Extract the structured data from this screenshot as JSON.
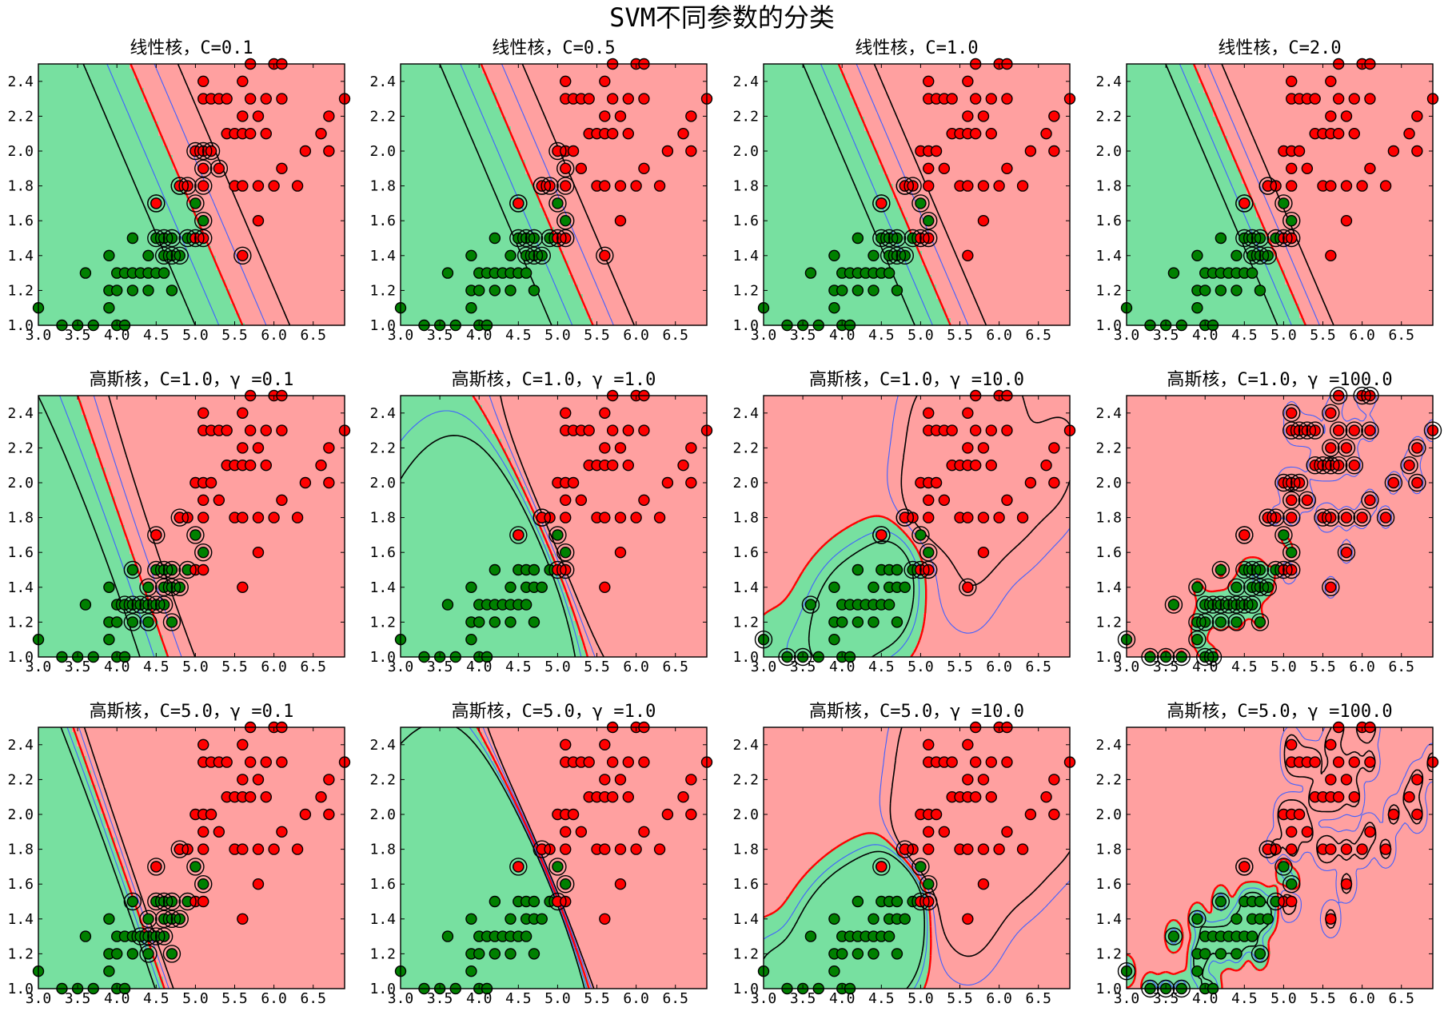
{
  "figure": {
    "title": "SVM不同参数的分类"
  },
  "colors": {
    "class0_region": "#77e0a0",
    "class1_region": "#ffa0a0",
    "class0_point": "#008000",
    "class1_point": "#ff0000",
    "boundary": "#ff0000",
    "margin_dashed": "#000000",
    "inner_dashed": "#4060ff"
  },
  "chart_data": [
    {
      "type": "scatter",
      "title": "线性核，C=0.1",
      "kernel": "linear",
      "C": 0.1,
      "xlim": [
        3.0,
        6.9
      ],
      "ylim": [
        1.0,
        2.5
      ],
      "xticks": [
        "3.0",
        "3.5",
        "4.0",
        "4.5",
        "5.0",
        "5.5",
        "6.0",
        "6.5"
      ],
      "yticks": [
        "1.0",
        "1.2",
        "1.4",
        "1.6",
        "1.8",
        "2.0",
        "2.2",
        "2.4"
      ]
    },
    {
      "type": "scatter",
      "title": "线性核，C=0.5",
      "kernel": "linear",
      "C": 0.5,
      "xlim": [
        3.0,
        6.9
      ],
      "ylim": [
        1.0,
        2.5
      ],
      "xticks": [
        "3.0",
        "3.5",
        "4.0",
        "4.5",
        "5.0",
        "5.5",
        "6.0",
        "6.5"
      ],
      "yticks": [
        "1.0",
        "1.2",
        "1.4",
        "1.6",
        "1.8",
        "2.0",
        "2.2",
        "2.4"
      ]
    },
    {
      "type": "scatter",
      "title": "线性核，C=1.0",
      "kernel": "linear",
      "C": 1.0,
      "xlim": [
        3.0,
        6.9
      ],
      "ylim": [
        1.0,
        2.5
      ],
      "xticks": [
        "3.0",
        "3.5",
        "4.0",
        "4.5",
        "5.0",
        "5.5",
        "6.0",
        "6.5"
      ],
      "yticks": [
        "1.0",
        "1.2",
        "1.4",
        "1.6",
        "1.8",
        "2.0",
        "2.2",
        "2.4"
      ]
    },
    {
      "type": "scatter",
      "title": "线性核，C=2.0",
      "kernel": "linear",
      "C": 2.0,
      "xlim": [
        3.0,
        6.9
      ],
      "ylim": [
        1.0,
        2.5
      ],
      "xticks": [
        "3.0",
        "3.5",
        "4.0",
        "4.5",
        "5.0",
        "5.5",
        "6.0",
        "6.5"
      ],
      "yticks": [
        "1.0",
        "1.2",
        "1.4",
        "1.6",
        "1.8",
        "2.0",
        "2.2",
        "2.4"
      ]
    },
    {
      "type": "scatter",
      "title": "高斯核，C=1.0，γ =0.1",
      "kernel": "rbf",
      "C": 1.0,
      "gamma": 0.1,
      "xlim": [
        3.0,
        6.9
      ],
      "ylim": [
        1.0,
        2.5
      ],
      "xticks": [
        "3.0",
        "3.5",
        "4.0",
        "4.5",
        "5.0",
        "5.5",
        "6.0",
        "6.5"
      ],
      "yticks": [
        "1.0",
        "1.2",
        "1.4",
        "1.6",
        "1.8",
        "2.0",
        "2.2",
        "2.4"
      ]
    },
    {
      "type": "scatter",
      "title": "高斯核，C=1.0，γ =1.0",
      "kernel": "rbf",
      "C": 1.0,
      "gamma": 1.0,
      "xlim": [
        3.0,
        6.9
      ],
      "ylim": [
        1.0,
        2.5
      ],
      "xticks": [
        "3.0",
        "3.5",
        "4.0",
        "4.5",
        "5.0",
        "5.5",
        "6.0",
        "6.5"
      ],
      "yticks": [
        "1.0",
        "1.2",
        "1.4",
        "1.6",
        "1.8",
        "2.0",
        "2.2",
        "2.4"
      ]
    },
    {
      "type": "scatter",
      "title": "高斯核，C=1.0，γ =10.0",
      "kernel": "rbf",
      "C": 1.0,
      "gamma": 10.0,
      "xlim": [
        3.0,
        6.9
      ],
      "ylim": [
        1.0,
        2.5
      ],
      "xticks": [
        "3.0",
        "3.5",
        "4.0",
        "4.5",
        "5.0",
        "5.5",
        "6.0",
        "6.5"
      ],
      "yticks": [
        "1.0",
        "1.2",
        "1.4",
        "1.6",
        "1.8",
        "2.0",
        "2.2",
        "2.4"
      ]
    },
    {
      "type": "scatter",
      "title": "高斯核，C=1.0，γ =100.0",
      "kernel": "rbf",
      "C": 1.0,
      "gamma": 100.0,
      "xlim": [
        3.0,
        6.9
      ],
      "ylim": [
        1.0,
        2.5
      ],
      "xticks": [
        "3.0",
        "3.5",
        "4.0",
        "4.5",
        "5.0",
        "5.5",
        "6.0",
        "6.5"
      ],
      "yticks": [
        "1.0",
        "1.2",
        "1.4",
        "1.6",
        "1.8",
        "2.0",
        "2.2",
        "2.4"
      ]
    },
    {
      "type": "scatter",
      "title": "高斯核，C=5.0，γ =0.1",
      "kernel": "rbf",
      "C": 5.0,
      "gamma": 0.1,
      "xlim": [
        3.0,
        6.9
      ],
      "ylim": [
        1.0,
        2.5
      ],
      "xticks": [
        "3.0",
        "3.5",
        "4.0",
        "4.5",
        "5.0",
        "5.5",
        "6.0",
        "6.5"
      ],
      "yticks": [
        "1.0",
        "1.2",
        "1.4",
        "1.6",
        "1.8",
        "2.0",
        "2.2",
        "2.4"
      ]
    },
    {
      "type": "scatter",
      "title": "高斯核，C=5.0，γ =1.0",
      "kernel": "rbf",
      "C": 5.0,
      "gamma": 1.0,
      "xlim": [
        3.0,
        6.9
      ],
      "ylim": [
        1.0,
        2.5
      ],
      "xticks": [
        "3.0",
        "3.5",
        "4.0",
        "4.5",
        "5.0",
        "5.5",
        "6.0",
        "6.5"
      ],
      "yticks": [
        "1.0",
        "1.2",
        "1.4",
        "1.6",
        "1.8",
        "2.0",
        "2.2",
        "2.4"
      ]
    },
    {
      "type": "scatter",
      "title": "高斯核，C=5.0，γ =10.0",
      "kernel": "rbf",
      "C": 5.0,
      "gamma": 10.0,
      "xlim": [
        3.0,
        6.9
      ],
      "ylim": [
        1.0,
        2.5
      ],
      "xticks": [
        "3.0",
        "3.5",
        "4.0",
        "4.5",
        "5.0",
        "5.5",
        "6.0",
        "6.5"
      ],
      "yticks": [
        "1.0",
        "1.2",
        "1.4",
        "1.6",
        "1.8",
        "2.0",
        "2.2",
        "2.4"
      ]
    },
    {
      "type": "scatter",
      "title": "高斯核，C=5.0，γ =100.0",
      "kernel": "rbf",
      "C": 5.0,
      "gamma": 100.0,
      "xlim": [
        3.0,
        6.9
      ],
      "ylim": [
        1.0,
        2.5
      ],
      "xticks": [
        "3.0",
        "3.5",
        "4.0",
        "4.5",
        "5.0",
        "5.5",
        "6.0",
        "6.5"
      ],
      "yticks": [
        "1.0",
        "1.2",
        "1.4",
        "1.6",
        "1.8",
        "2.0",
        "2.2",
        "2.4"
      ]
    }
  ],
  "points": {
    "class0": [
      [
        3.0,
        1.1
      ],
      [
        3.3,
        1.0
      ],
      [
        3.5,
        1.0
      ],
      [
        3.6,
        1.3
      ],
      [
        3.7,
        1.0
      ],
      [
        3.9,
        1.1
      ],
      [
        3.9,
        1.2
      ],
      [
        3.9,
        1.4
      ],
      [
        4.0,
        1.0
      ],
      [
        4.0,
        1.2
      ],
      [
        4.0,
        1.3
      ],
      [
        4.1,
        1.0
      ],
      [
        4.1,
        1.3
      ],
      [
        4.2,
        1.2
      ],
      [
        4.2,
        1.3
      ],
      [
        4.2,
        1.5
      ],
      [
        4.3,
        1.3
      ],
      [
        4.4,
        1.2
      ],
      [
        4.4,
        1.3
      ],
      [
        4.4,
        1.4
      ],
      [
        4.5,
        1.3
      ],
      [
        4.5,
        1.5
      ],
      [
        4.5,
        1.7
      ],
      [
        4.6,
        1.3
      ],
      [
        4.6,
        1.4
      ],
      [
        4.6,
        1.5
      ],
      [
        4.7,
        1.2
      ],
      [
        4.7,
        1.4
      ],
      [
        4.7,
        1.5
      ],
      [
        4.8,
        1.4
      ],
      [
        4.8,
        1.8
      ],
      [
        4.9,
        1.5
      ],
      [
        5.0,
        1.7
      ],
      [
        5.1,
        1.6
      ]
    ],
    "class1": [
      [
        4.5,
        1.7
      ],
      [
        4.8,
        1.8
      ],
      [
        4.9,
        1.8
      ],
      [
        5.0,
        1.5
      ],
      [
        5.0,
        2.0
      ],
      [
        5.1,
        1.5
      ],
      [
        5.1,
        1.8
      ],
      [
        5.1,
        1.9
      ],
      [
        5.1,
        2.0
      ],
      [
        5.1,
        2.3
      ],
      [
        5.1,
        2.4
      ],
      [
        5.2,
        2.0
      ],
      [
        5.2,
        2.3
      ],
      [
        5.3,
        1.9
      ],
      [
        5.3,
        2.3
      ],
      [
        5.4,
        2.1
      ],
      [
        5.4,
        2.3
      ],
      [
        5.5,
        1.8
      ],
      [
        5.5,
        2.1
      ],
      [
        5.6,
        1.4
      ],
      [
        5.6,
        1.8
      ],
      [
        5.6,
        2.1
      ],
      [
        5.6,
        2.2
      ],
      [
        5.6,
        2.4
      ],
      [
        5.7,
        2.1
      ],
      [
        5.7,
        2.3
      ],
      [
        5.7,
        2.5
      ],
      [
        5.8,
        1.6
      ],
      [
        5.8,
        1.8
      ],
      [
        5.8,
        2.2
      ],
      [
        5.9,
        2.1
      ],
      [
        5.9,
        2.3
      ],
      [
        6.0,
        1.8
      ],
      [
        6.0,
        2.5
      ],
      [
        6.1,
        1.9
      ],
      [
        6.1,
        2.3
      ],
      [
        6.1,
        2.5
      ],
      [
        6.3,
        1.8
      ],
      [
        6.4,
        2.0
      ],
      [
        6.6,
        2.1
      ],
      [
        6.7,
        2.0
      ],
      [
        6.7,
        2.2
      ],
      [
        6.9,
        2.3
      ]
    ]
  }
}
